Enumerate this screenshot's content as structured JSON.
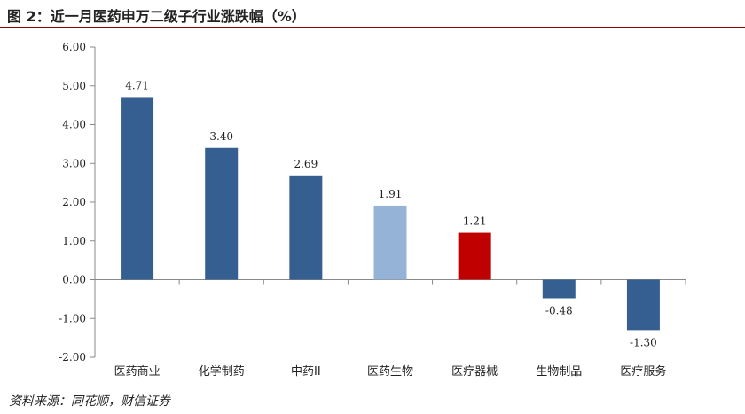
{
  "title": "图 2：近一月医药申万二级子行业涨跌幅（%）",
  "source": "资料来源：同花顺，财信证券",
  "colors": {
    "default_bar": "#365f91",
    "light_bar": "#95b3d7",
    "red_bar": "#c00000",
    "axis": "#888888"
  },
  "chart_data": {
    "type": "bar",
    "title": "",
    "xlabel": "",
    "ylabel": "",
    "ylim": [
      -2,
      6
    ],
    "yticks": [
      "6.00",
      "5.00",
      "4.00",
      "3.00",
      "2.00",
      "1.00",
      "0.00",
      "-1.00",
      "-2.00"
    ],
    "grid": false,
    "categories": [
      "医药商业",
      "化学制药",
      "中药II",
      "医药生物",
      "医疗器械",
      "生物制品",
      "医疗服务"
    ],
    "values": [
      4.71,
      3.4,
      2.69,
      1.91,
      1.21,
      -0.48,
      -1.3
    ],
    "value_labels": [
      "4.71",
      "3.40",
      "2.69",
      "1.91",
      "1.21",
      "-0.48",
      "-1.30"
    ],
    "bar_colors": [
      "#365f91",
      "#365f91",
      "#365f91",
      "#95b3d7",
      "#c00000",
      "#365f91",
      "#365f91"
    ]
  }
}
